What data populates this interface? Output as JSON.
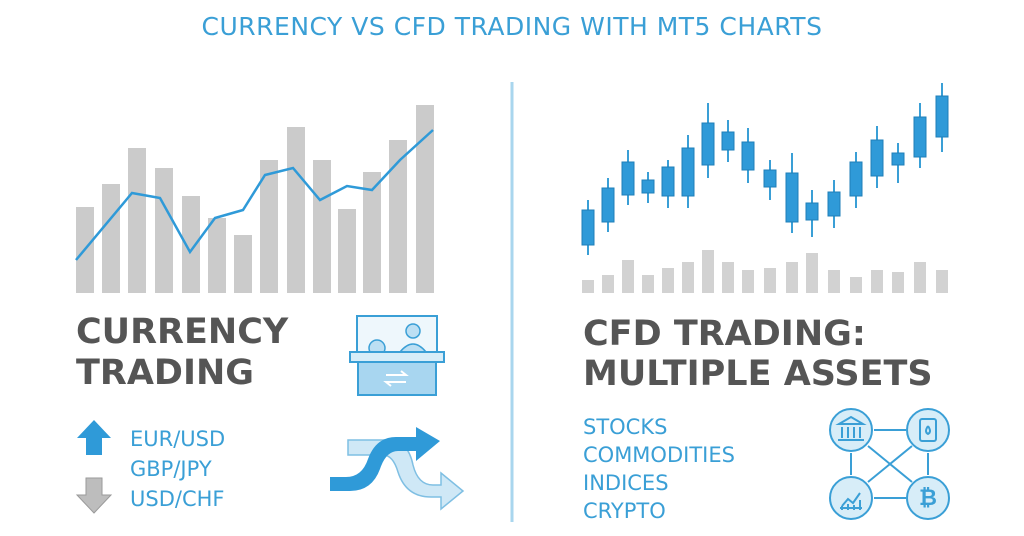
{
  "header": {
    "title": "CURRENCY VS CFD TRADING WITH MT5 CHARTS"
  },
  "left": {
    "heading": [
      "CURRENCY",
      "TRADING"
    ],
    "pairs": [
      "EUR/USD",
      "GBP/JPY",
      "USD/CHF"
    ]
  },
  "right": {
    "heading": [
      "CFD TRADING:",
      "MULTIPLE ASSETS"
    ],
    "assets": [
      "STOCKS",
      "COMMODITIES",
      "INDICES",
      "CRYPTO"
    ]
  }
}
